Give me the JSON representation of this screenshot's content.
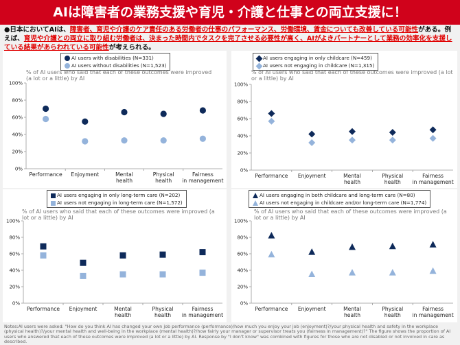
{
  "title": "AIは障害者の業務支援や育児・介護と仕事との両立支援に！",
  "lead": {
    "bullet": "●",
    "p1": "日本においてAIは、",
    "r1": "障害者、育児や介護のケア責任のある労働者の仕事のパフォーマンス、労働環境、賃金についても改善している可能性",
    "p2": "がある。例えば、",
    "r2": "育児や介護との両立に取り組む労働者は、決まった時間内でタスクを完了させる必要性が高く、AIがよきパートナーとして業務の効率化を支援している結果があらわれている可能性",
    "p3": "が考えられる。"
  },
  "colors": {
    "dark": "#0e2a5a",
    "light": "#94b3db",
    "accent": "#d0021b"
  },
  "chart_data": [
    {
      "type": "scatter",
      "marker": "circle",
      "subtitle": "% of AI users who said that each of these outcomes were improved (a lot or a little) by AI",
      "categories": [
        "Performance",
        "Enjoyment",
        "Mental health",
        "Physical health",
        "Fairness in management"
      ],
      "ylim": [
        0,
        100
      ],
      "yticks": [
        "0%",
        "20%",
        "40%",
        "60%",
        "80%",
        "100%"
      ],
      "series": [
        {
          "name": "AI users with disabilities (N=331)",
          "values": [
            70,
            55,
            66,
            64,
            68
          ]
        },
        {
          "name": "AI users without disabilities (N=1,523)",
          "values": [
            58,
            32,
            33,
            33,
            35
          ]
        }
      ]
    },
    {
      "type": "scatter",
      "marker": "diamond",
      "subtitle": "% of AI users who said that each of these outcomes were improved (a lot or a little) by AI",
      "categories": [
        "Performance",
        "Enjoyment",
        "Mental health",
        "Physical health",
        "Fairness in management"
      ],
      "ylim": [
        0,
        100
      ],
      "yticks": [
        "0%",
        "20%",
        "40%",
        "60%",
        "80%",
        "100%"
      ],
      "series": [
        {
          "name": "AI users engaging in only childcare (N=459)",
          "values": [
            66,
            42,
            45,
            44,
            47
          ]
        },
        {
          "name": "AI users not engaging in childcare (N=1,315)",
          "values": [
            57,
            32,
            35,
            35,
            37
          ]
        }
      ]
    },
    {
      "type": "scatter",
      "marker": "square",
      "subtitle": "% of AI users who said that each of these outcomes were improved (a lot or a little) by AI",
      "categories": [
        "Performance",
        "Enjoyment",
        "Mental health",
        "Physical health",
        "Fairness in management"
      ],
      "ylim": [
        0,
        100
      ],
      "yticks": [
        "0%",
        "20%",
        "40%",
        "60%",
        "80%",
        "100%"
      ],
      "series": [
        {
          "name": "AI users engaging in only long-term care (N=202)",
          "values": [
            69,
            49,
            58,
            59,
            62
          ]
        },
        {
          "name": "AI users not engaging in long-term care (N=1,572)",
          "values": [
            58,
            33,
            35,
            35,
            37
          ]
        }
      ]
    },
    {
      "type": "scatter",
      "marker": "triangle",
      "subtitle": "% of AI users who said that each of these outcomes were improved (a lot or a little) by AI",
      "categories": [
        "Performance",
        "Enjoyment",
        "Mental health",
        "Physical health",
        "Fairness in management"
      ],
      "ylim": [
        0,
        100
      ],
      "yticks": [
        "0%",
        "20%",
        "40%",
        "60%",
        "80%",
        "100%"
      ],
      "series": [
        {
          "name": "AI users engaging in both childcare and long-term care (N=80)",
          "values": [
            82,
            62,
            68,
            69,
            71
          ]
        },
        {
          "name": "AI users not engaging in childcare and/or long-term care (N=1,774)",
          "values": [
            59,
            35,
            37,
            37,
            39
          ]
        }
      ]
    }
  ],
  "notes": "Notes:AI users were asked: \"How do you think AI has changed your own job performance (performance)/how much you enjoy your job (enjoyment)?/your physical health and safety in the workplace (physical health)?/your mental health and well-being in the workplace (mental health)?/how fairly your manager or supervisor treats you (fairness in management)?\" The figure shows the proportion of AI users who answered that each of these outcomes were improved (a lot or a little) by AI. Response by \"I don't know\" was combined with figures for those who are not disabled or not involved in care as described."
}
